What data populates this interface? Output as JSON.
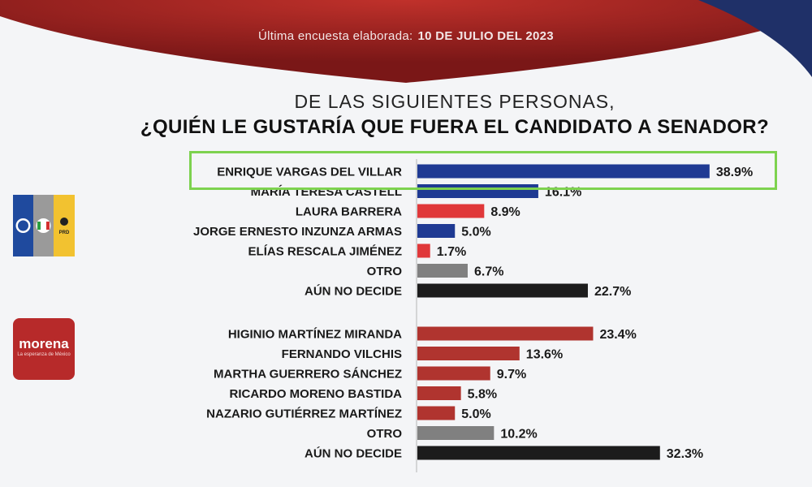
{
  "header": {
    "subtitle_prefix": "Última encuesta elaborada:",
    "subtitle_date": "10 DE JULIO DEL 2023"
  },
  "question": {
    "line1": "DE LAS SIGUIENTES PERSONAS,",
    "line2": "¿QUIÉN LE GUSTARÍA QUE FUERA EL CANDIDATO A SENADOR?"
  },
  "logos": {
    "coalition": {
      "name": "PAN-PRI-PRD",
      "text": "PRD"
    },
    "morena": {
      "name": "morena",
      "text": "morena",
      "tagline": "La esperanza de México"
    }
  },
  "colors": {
    "pan_blue": "#1f3a93",
    "prd_red": "#e0383a",
    "morena_red": "#b0342f",
    "otro_gray": "#808080",
    "undecided_black": "#1c1c1c",
    "highlight_green": "#7dd24f"
  },
  "chart_data": [
    {
      "type": "bar",
      "orientation": "horizontal",
      "group": "coalition",
      "categories": [
        "ENRIQUE VARGAS DEL VILLAR",
        "MARÍA TERESA CASTELL",
        "LAURA BARRERA",
        "JORGE ERNESTO INZUNZA ARMAS",
        "ELÍAS RESCALA JIMÉNEZ",
        "OTRO",
        "AÚN NO DECIDE"
      ],
      "values": [
        38.9,
        16.1,
        8.9,
        5.0,
        1.7,
        6.7,
        22.7
      ],
      "value_labels": [
        "38.9%",
        "16.1%",
        "8.9%",
        "5.0%",
        "1.7%",
        "6.7%",
        "22.7%"
      ],
      "bar_colors": [
        "#1f3a93",
        "#1f3a93",
        "#e0383a",
        "#1f3a93",
        "#e0383a",
        "#808080",
        "#1c1c1c"
      ],
      "highlighted": "ENRIQUE VARGAS DEL VILLAR"
    },
    {
      "type": "bar",
      "orientation": "horizontal",
      "group": "morena",
      "categories": [
        "HIGINIO MARTÍNEZ MIRANDA",
        "FERNANDO VILCHIS",
        "MARTHA GUERRERO SÁNCHEZ",
        "RICARDO MORENO BASTIDA",
        "NAZARIO GUTIÉRREZ MARTÍNEZ",
        "OTRO",
        "AÚN NO DECIDE"
      ],
      "values": [
        23.4,
        13.6,
        9.7,
        5.8,
        5.0,
        10.2,
        32.3
      ],
      "value_labels": [
        "23.4%",
        "13.6%",
        "9.7%",
        "5.8%",
        "5.0%",
        "10.2%",
        "32.3%"
      ],
      "bar_colors": [
        "#b0342f",
        "#b0342f",
        "#b0342f",
        "#b0342f",
        "#b0342f",
        "#808080",
        "#1c1c1c"
      ]
    }
  ]
}
